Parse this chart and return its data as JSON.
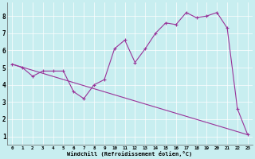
{
  "xlabel": "Windchill (Refroidissement éolien,°C)",
  "background_color": "#c8eef0",
  "line_color": "#993399",
  "xlim": [
    -0.5,
    23.5
  ],
  "ylim": [
    0.5,
    8.8
  ],
  "xticks": [
    0,
    1,
    2,
    3,
    4,
    5,
    6,
    7,
    8,
    9,
    10,
    11,
    12,
    13,
    14,
    15,
    16,
    17,
    18,
    19,
    20,
    21,
    22,
    23
  ],
  "yticks": [
    1,
    2,
    3,
    4,
    5,
    6,
    7,
    8
  ],
  "series1_x": [
    0,
    1,
    2,
    3,
    4,
    5,
    6,
    7,
    8,
    9,
    10,
    11,
    12,
    13,
    14,
    15,
    16,
    17,
    18,
    19,
    20,
    21,
    22,
    23
  ],
  "series1_y": [
    5.2,
    5.0,
    4.5,
    4.8,
    4.8,
    4.8,
    3.6,
    3.2,
    4.0,
    4.3,
    6.1,
    6.6,
    5.3,
    6.1,
    7.0,
    7.6,
    7.5,
    8.2,
    7.9,
    8.0,
    8.2,
    7.3,
    2.6,
    1.1
  ],
  "series2_x": [
    0,
    23
  ],
  "series2_y": [
    5.2,
    1.1
  ]
}
